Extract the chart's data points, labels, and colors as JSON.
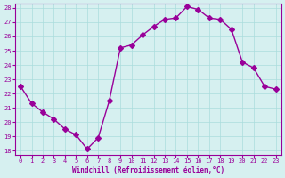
{
  "x": [
    0,
    1,
    2,
    3,
    4,
    5,
    6,
    7,
    8,
    9,
    10,
    11,
    12,
    13,
    14,
    15,
    16,
    17,
    18,
    19,
    20,
    21,
    22,
    23
  ],
  "y": [
    22.5,
    21.3,
    20.7,
    20.2,
    19.5,
    19.1,
    18.1,
    18.9,
    21.5,
    25.2,
    25.4,
    26.1,
    26.7,
    27.2,
    27.3,
    28.1,
    27.9,
    27.3,
    27.2,
    26.5,
    24.2,
    23.8,
    22.5,
    22.3
  ],
  "line_color": "#990099",
  "marker": "D",
  "marker_size": 3,
  "bg_color": "#d6f0f0",
  "grid_color": "#aadddd",
  "xlabel": "Windchill (Refroidissement éolien,°C)",
  "xlabel_color": "#990099",
  "tick_color": "#990099",
  "ylim_min": 18,
  "ylim_max": 28,
  "yticks": [
    18,
    19,
    20,
    21,
    22,
    23,
    24,
    25,
    26,
    27,
    28
  ],
  "xlim_min": -0.5,
  "xlim_max": 23.5,
  "xticks": [
    0,
    1,
    2,
    3,
    4,
    5,
    6,
    7,
    8,
    9,
    10,
    11,
    12,
    13,
    14,
    15,
    16,
    17,
    18,
    19,
    20,
    21,
    22,
    23
  ]
}
